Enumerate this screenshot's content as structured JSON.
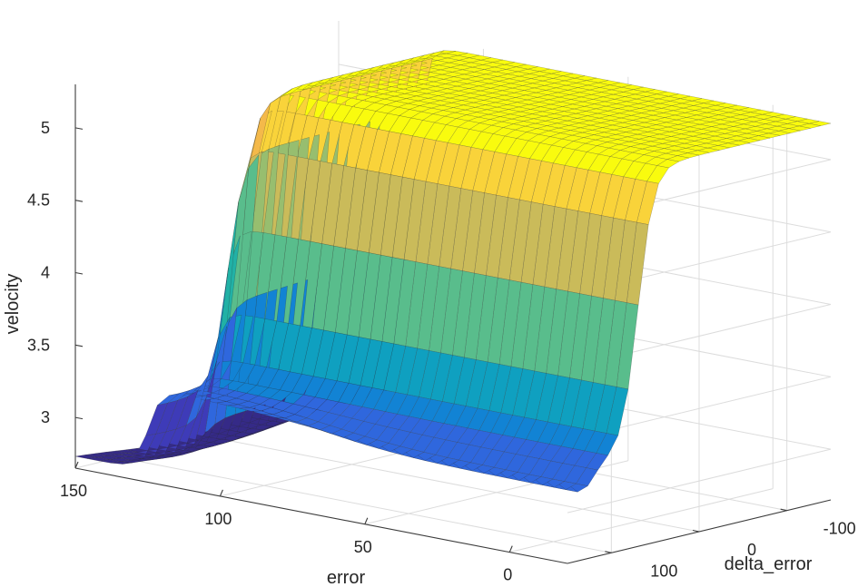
{
  "chart_data": {
    "type": "surface",
    "title": "",
    "xlabel": "error",
    "ylabel": "delta_error",
    "zlabel": "velocity",
    "x_ticks": [
      0,
      50,
      100,
      150
    ],
    "y_ticks": [
      -100,
      0,
      100
    ],
    "z_ticks": [
      3,
      3.5,
      4,
      4.5,
      5
    ],
    "xlim": [
      -20,
      150
    ],
    "ylim": [
      -150,
      150
    ],
    "zlim": [
      2.65,
      5.3
    ],
    "grid": true,
    "colormap": "parula",
    "z_levels": [
      2.75,
      3.0,
      3.25,
      3.5,
      3.75,
      4.0,
      4.25,
      4.5,
      4.75,
      5.0,
      5.25
    ],
    "surface_description_values": {
      "plateau_high_velocity": 5.25,
      "floor_low_velocity": 2.75,
      "step_location_error": 125
    }
  }
}
